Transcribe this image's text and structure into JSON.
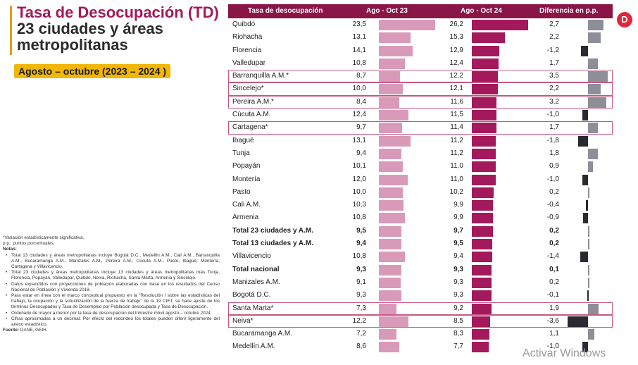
{
  "title": {
    "prefix": "Tasa de Desocupación ",
    "acronym": "(TD)",
    "line2": "23 ciudades y áreas",
    "line3": "metropolitanas"
  },
  "period": "Agosto – octubre (2023 – 2024 )",
  "notes": {
    "asterisk": "*Variación estadísticamente significativa.",
    "pp": "p.p.: puntos porcentuales.",
    "notes_title": "Notas:",
    "items": [
      "Total 13 ciudades y áreas metropolitanas incluye Bogotá D.C., Medellín A.M., Cali A.M., Barranquilla A.M., Bucaramanga A.M., Manizales A.M., Pereira A.M., Cúcuta A.M., Pasto, Ibagué, Montería, Cartagena y Villavicencio.",
      "Total 23 ciudades y áreas metropolitanas incluye 13 ciudades y áreas metropolitanas más Tunja, Florencia, Popayán, Valledupar, Quibdó, Neiva, Riohacha, Santa Marta, Armenia y Sincelejo.",
      "Datos expandidos con proyecciones de población elaboradas con base en los resultados del Censo Nacional de Población y Vivienda 2018.",
      "Para estar en línea con el marco conceptual propuesto en la \"Resolución I sobre las estadísticas del trabajo, la ocupación y la subutilización de la fuerza de trabajo\" de la 19 CIET, se hace ajuste de los términos Desocupados y Tasa de Desempleo por Población desocupada y Tasa de Desocupación.",
      "Ordenado de mayor a menor por la tasa de desocupación del trimestre móvil agosto – octubre 2024.",
      "Cifras aproximadas a un decimal. Por efecto del redondeo los totales pueden diferir ligeramente del anexo estadístico."
    ],
    "source_label": "Fuente:",
    "source": "DANE, GEIH."
  },
  "table": {
    "headers": {
      "city": "Tasa de desocupación",
      "v23": "Ago - Oct 23",
      "v24": "Ago - Oct 24",
      "dif": "Diferencia en p.p."
    },
    "rows": [
      {
        "city": "Quibdó",
        "v23": "23,5",
        "v24": "26,2",
        "dif": "2,7",
        "n23": 23.5,
        "n24": 26.2,
        "nd": 2.7,
        "hl": false,
        "total": false
      },
      {
        "city": "Riohacha",
        "v23": "13,1",
        "v24": "15,3",
        "dif": "2,2",
        "n23": 13.1,
        "n24": 15.3,
        "nd": 2.2,
        "hl": false,
        "total": false
      },
      {
        "city": "Florencia",
        "v23": "14,1",
        "v24": "12,9",
        "dif": "-1,2",
        "n23": 14.1,
        "n24": 12.9,
        "nd": -1.2,
        "hl": false,
        "total": false
      },
      {
        "city": "Valledupar",
        "v23": "10,8",
        "v24": "12,4",
        "dif": "1,7",
        "n23": 10.8,
        "n24": 12.4,
        "nd": 1.7,
        "hl": false,
        "total": false
      },
      {
        "city": "Barranquilla A.M.*",
        "v23": "8,7",
        "v24": "12,2",
        "dif": "3,5",
        "n23": 8.7,
        "n24": 12.2,
        "nd": 3.5,
        "hl": true,
        "total": false
      },
      {
        "city": "Sincelejo*",
        "v23": "10,0",
        "v24": "12,1",
        "dif": "2,2",
        "n23": 10.0,
        "n24": 12.1,
        "nd": 2.2,
        "hl": true,
        "total": false
      },
      {
        "city": "Pereira A.M.*",
        "v23": "8,4",
        "v24": "11,6",
        "dif": "3,2",
        "n23": 8.4,
        "n24": 11.6,
        "nd": 3.2,
        "hl": true,
        "total": false
      },
      {
        "city": "Cúcuta A.M.",
        "v23": "12,4",
        "v24": "11,5",
        "dif": "-1,0",
        "n23": 12.4,
        "n24": 11.5,
        "nd": -1.0,
        "hl": false,
        "total": false
      },
      {
        "city": "Cartagena*",
        "v23": "9,7",
        "v24": "11,4",
        "dif": "1,7",
        "n23": 9.7,
        "n24": 11.4,
        "nd": 1.7,
        "hl": true,
        "total": false
      },
      {
        "city": "Ibagué",
        "v23": "13,1",
        "v24": "11,2",
        "dif": "-1,8",
        "n23": 13.1,
        "n24": 11.2,
        "nd": -1.8,
        "hl": false,
        "total": false
      },
      {
        "city": "Tunja",
        "v23": "9,4",
        "v24": "11,2",
        "dif": "1,8",
        "n23": 9.4,
        "n24": 11.2,
        "nd": 1.8,
        "hl": false,
        "total": false
      },
      {
        "city": "Popayán",
        "v23": "10,1",
        "v24": "11,0",
        "dif": "0,9",
        "n23": 10.1,
        "n24": 11.0,
        "nd": 0.9,
        "hl": false,
        "total": false
      },
      {
        "city": "Montería",
        "v23": "12,0",
        "v24": "11,0",
        "dif": "-1,0",
        "n23": 12.0,
        "n24": 11.0,
        "nd": -1.0,
        "hl": false,
        "total": false
      },
      {
        "city": "Pasto",
        "v23": "10,0",
        "v24": "10,2",
        "dif": "0,2",
        "n23": 10.0,
        "n24": 10.2,
        "nd": 0.2,
        "hl": false,
        "total": false
      },
      {
        "city": "Cali A.M.",
        "v23": "10,3",
        "v24": "9,9",
        "dif": "-0,4",
        "n23": 10.3,
        "n24": 9.9,
        "nd": -0.4,
        "hl": false,
        "total": false
      },
      {
        "city": "Armenia",
        "v23": "10,8",
        "v24": "9,9",
        "dif": "-0,9",
        "n23": 10.8,
        "n24": 9.9,
        "nd": -0.9,
        "hl": false,
        "total": false
      },
      {
        "city": "Total 23 ciudades y A.M.",
        "v23": "9,5",
        "v24": "9,7",
        "dif": "0,2",
        "n23": 9.5,
        "n24": 9.7,
        "nd": 0.2,
        "hl": false,
        "total": true
      },
      {
        "city": "Total 13 ciudades y A.M.",
        "v23": "9,4",
        "v24": "9,5",
        "dif": "0,2",
        "n23": 9.4,
        "n24": 9.5,
        "nd": 0.2,
        "hl": false,
        "total": true
      },
      {
        "city": "Villavicencio",
        "v23": "10,8",
        "v24": "9,4",
        "dif": "-1,4",
        "n23": 10.8,
        "n24": 9.4,
        "nd": -1.4,
        "hl": false,
        "total": false
      },
      {
        "city": "Total nacional",
        "v23": "9,3",
        "v24": "9,3",
        "dif": "0,1",
        "n23": 9.3,
        "n24": 9.3,
        "nd": 0.1,
        "hl": false,
        "total": true
      },
      {
        "city": "Manizales A.M.",
        "v23": "9,1",
        "v24": "9,3",
        "dif": "0,2",
        "n23": 9.1,
        "n24": 9.3,
        "nd": 0.2,
        "hl": false,
        "total": false
      },
      {
        "city": "Bogotá D.C.",
        "v23": "9,3",
        "v24": "9,3",
        "dif": "-0,1",
        "n23": 9.3,
        "n24": 9.3,
        "nd": -0.1,
        "hl": false,
        "total": false
      },
      {
        "city": "Santa Marta*",
        "v23": "7,3",
        "v24": "9,2",
        "dif": "1,9",
        "n23": 7.3,
        "n24": 9.2,
        "nd": 1.9,
        "hl": true,
        "total": false
      },
      {
        "city": "Neiva*",
        "v23": "12,2",
        "v24": "8,5",
        "dif": "-3,6",
        "n23": 12.2,
        "n24": 8.5,
        "nd": -3.6,
        "hl": true,
        "total": false
      },
      {
        "city": "Bucaramanga A.M.",
        "v23": "7,2",
        "v24": "8,3",
        "dif": "1,1",
        "n23": 7.2,
        "n24": 8.3,
        "nd": 1.1,
        "hl": false,
        "total": false
      },
      {
        "city": "Medellín A.M.",
        "v23": "8,6",
        "v24": "7,7",
        "dif": "-1,0",
        "n23": 8.6,
        "n24": 7.7,
        "nd": -1.0,
        "hl": false,
        "total": false
      }
    ]
  },
  "logo_letter": "D",
  "watermark": "Activar Windows",
  "colors": {
    "accent": "#a3195b",
    "header": "#8a1547",
    "bar23": "#d99ab9",
    "neg": "#2a2a30",
    "pos": "#8e8e99",
    "period_bg": "#f2b705"
  }
}
